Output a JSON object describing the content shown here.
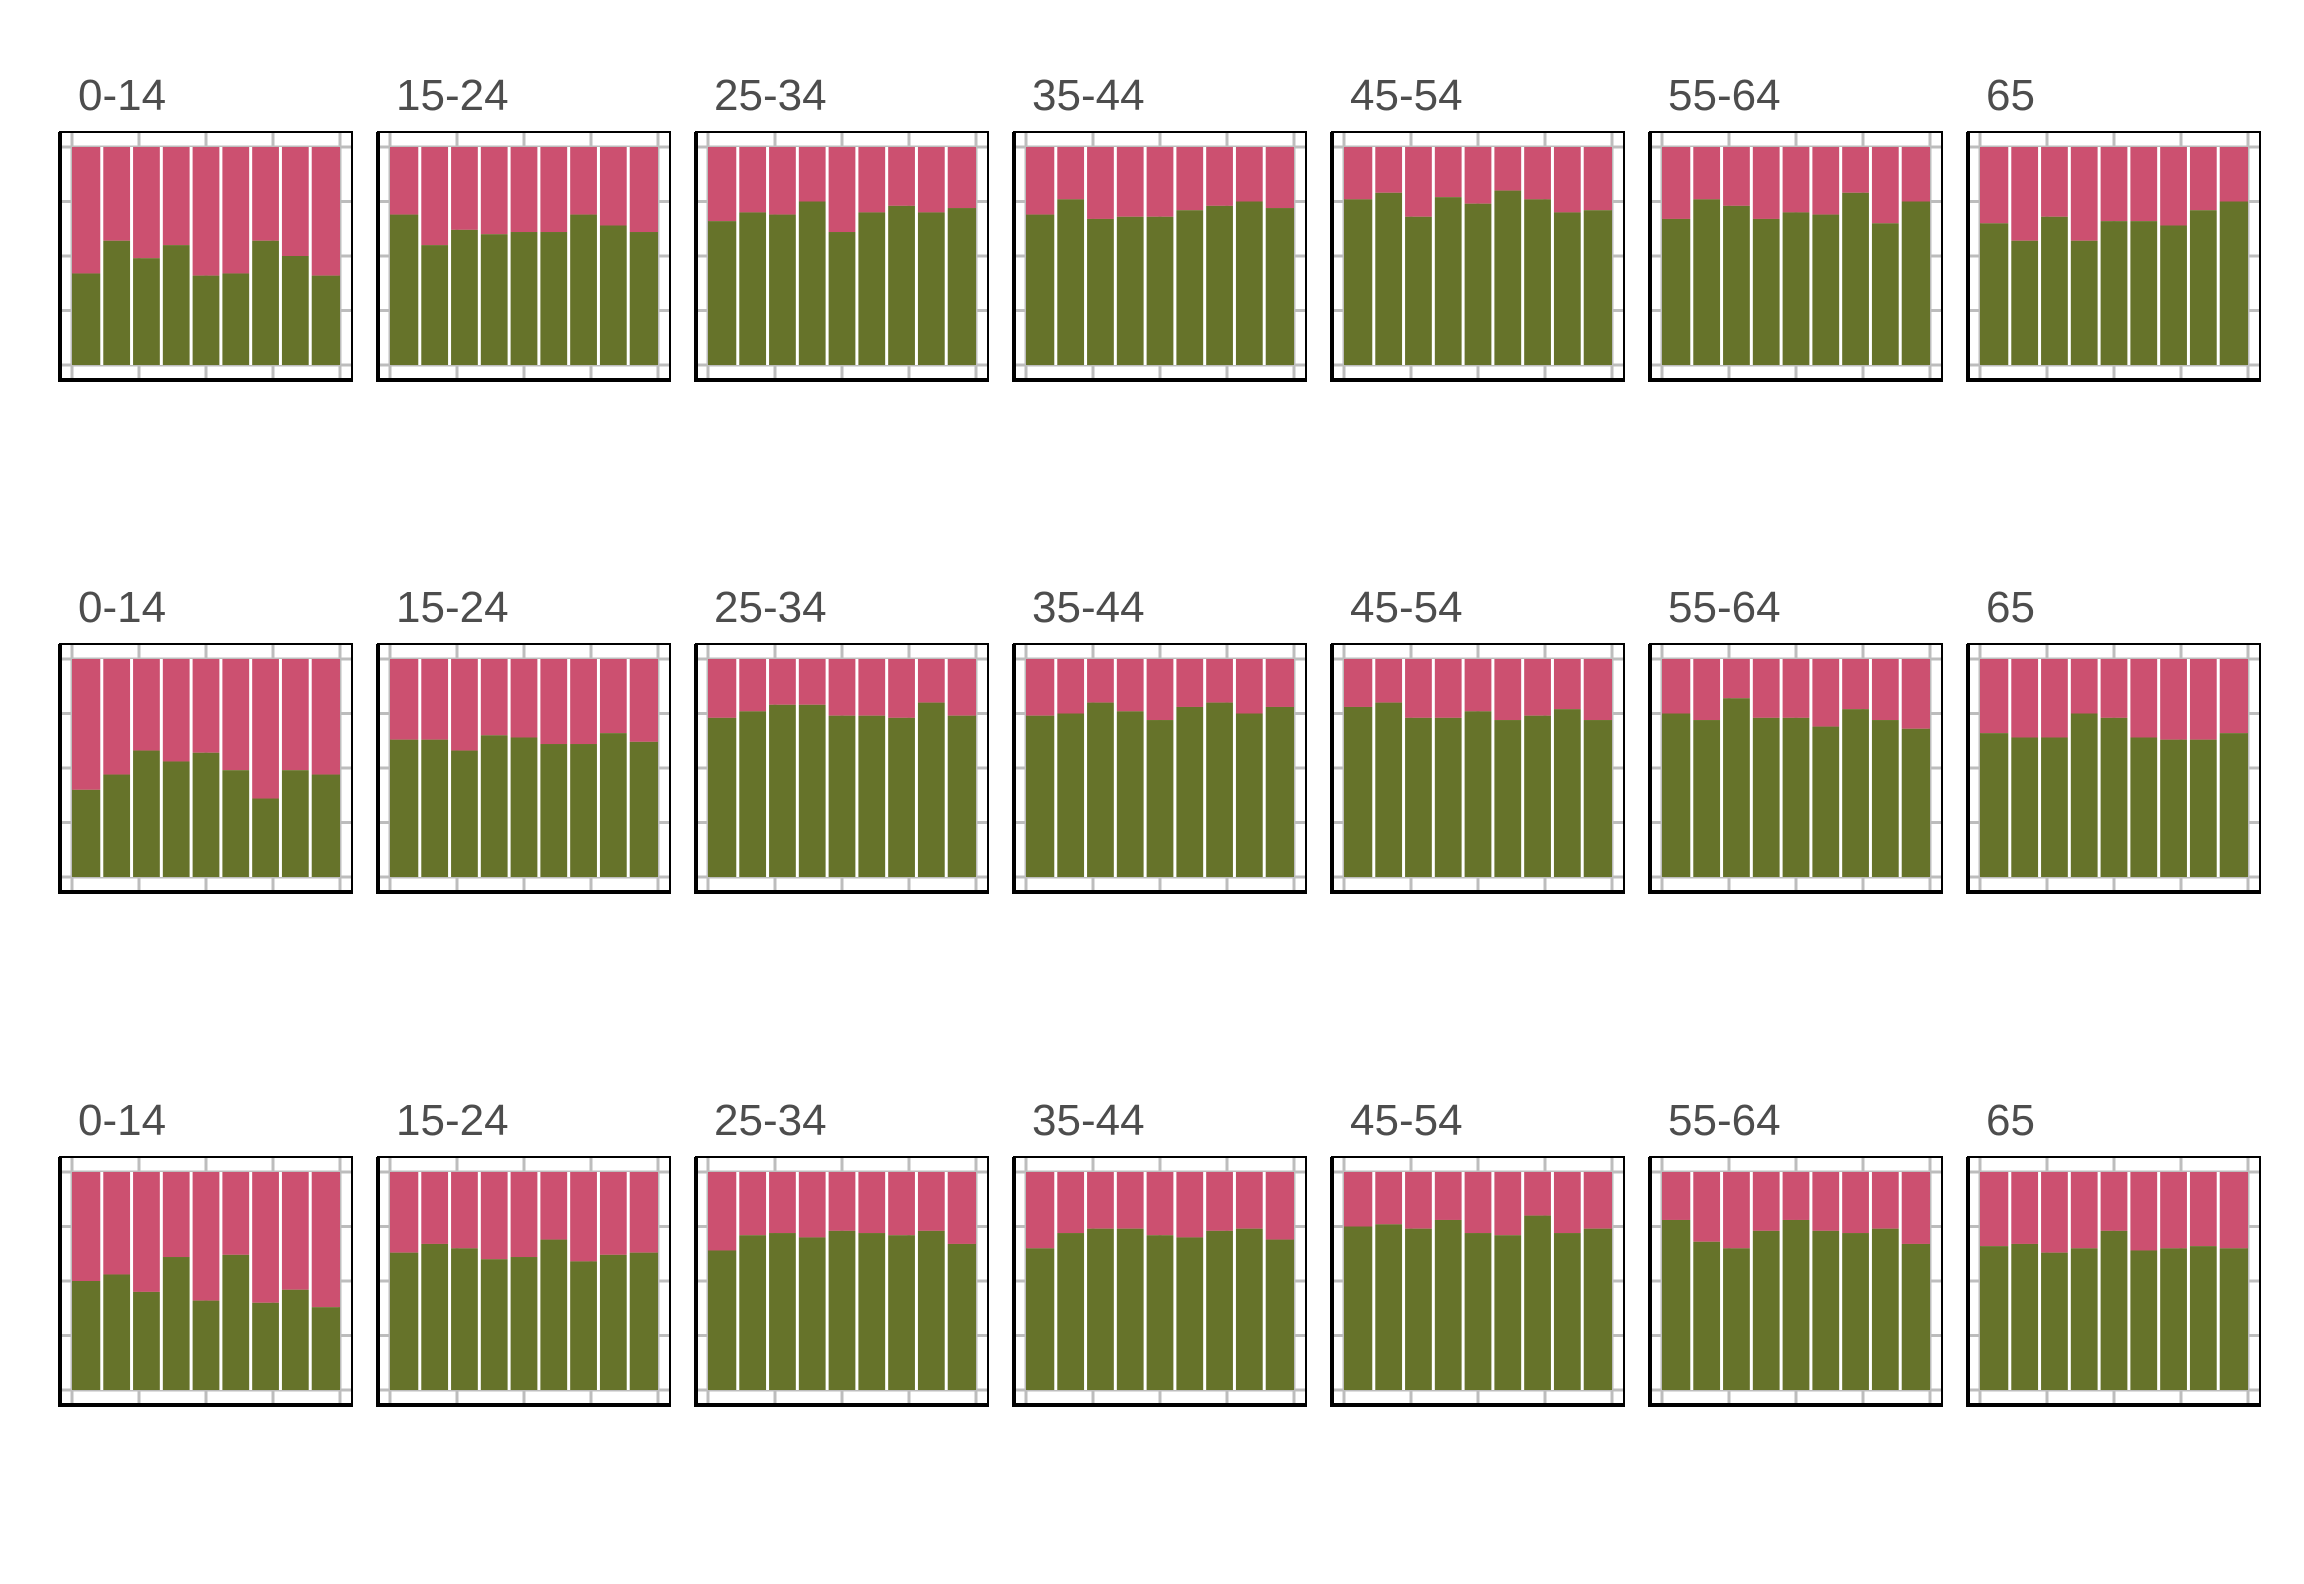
{
  "chart_data": {
    "type": "bar",
    "stacked": true,
    "normalized": true,
    "facet_rows": 3,
    "facet_cols": 7,
    "ylim": [
      0,
      1
    ],
    "grid": true,
    "legend": "none",
    "colors": {
      "bottom": "#66732a",
      "top": "#cc5070",
      "grid": "#bdbdbd",
      "frame": "#000000"
    },
    "panels": [
      {
        "row": 0,
        "label": "0-14",
        "values": [
          0.42,
          0.57,
          0.49,
          0.55,
          0.41,
          0.42,
          0.57,
          0.5,
          0.41
        ]
      },
      {
        "row": 0,
        "label": "15-24",
        "values": [
          0.69,
          0.55,
          0.62,
          0.6,
          0.61,
          0.61,
          0.69,
          0.64,
          0.61
        ]
      },
      {
        "row": 0,
        "label": "25-34",
        "values": [
          0.66,
          0.7,
          0.69,
          0.75,
          0.61,
          0.7,
          0.73,
          0.7,
          0.72
        ]
      },
      {
        "row": 0,
        "label": "35-44",
        "values": [
          0.69,
          0.76,
          0.67,
          0.68,
          0.68,
          0.71,
          0.73,
          0.75,
          0.72
        ]
      },
      {
        "row": 0,
        "label": "45-54",
        "values": [
          0.76,
          0.79,
          0.68,
          0.77,
          0.74,
          0.8,
          0.76,
          0.7,
          0.71
        ]
      },
      {
        "row": 0,
        "label": "55-64",
        "values": [
          0.67,
          0.76,
          0.73,
          0.67,
          0.7,
          0.69,
          0.79,
          0.65,
          0.75
        ]
      },
      {
        "row": 0,
        "label": "65",
        "values": [
          0.65,
          0.57,
          0.68,
          0.57,
          0.66,
          0.66,
          0.64,
          0.71,
          0.75
        ]
      },
      {
        "row": 1,
        "label": "0-14",
        "values": [
          0.4,
          0.47,
          0.58,
          0.53,
          0.57,
          0.49,
          0.36,
          0.49,
          0.47
        ]
      },
      {
        "row": 1,
        "label": "15-24",
        "values": [
          0.63,
          0.63,
          0.58,
          0.65,
          0.64,
          0.61,
          0.61,
          0.66,
          0.62
        ]
      },
      {
        "row": 1,
        "label": "25-34",
        "values": [
          0.73,
          0.76,
          0.79,
          0.79,
          0.74,
          0.74,
          0.73,
          0.8,
          0.74
        ]
      },
      {
        "row": 1,
        "label": "35-44",
        "values": [
          0.74,
          0.75,
          0.8,
          0.76,
          0.72,
          0.78,
          0.8,
          0.75,
          0.78
        ]
      },
      {
        "row": 1,
        "label": "45-54",
        "values": [
          0.78,
          0.8,
          0.73,
          0.73,
          0.76,
          0.72,
          0.74,
          0.77,
          0.72
        ]
      },
      {
        "row": 1,
        "label": "55-64",
        "values": [
          0.75,
          0.72,
          0.82,
          0.73,
          0.73,
          0.69,
          0.77,
          0.72,
          0.68
        ]
      },
      {
        "row": 1,
        "label": "65",
        "values": [
          0.66,
          0.64,
          0.64,
          0.75,
          0.73,
          0.64,
          0.63,
          0.63,
          0.66
        ]
      },
      {
        "row": 2,
        "label": "0-14",
        "values": [
          0.5,
          0.53,
          0.45,
          0.61,
          0.41,
          0.62,
          0.4,
          0.46,
          0.38
        ]
      },
      {
        "row": 2,
        "label": "15-24",
        "values": [
          0.63,
          0.67,
          0.65,
          0.6,
          0.61,
          0.69,
          0.59,
          0.62,
          0.63
        ]
      },
      {
        "row": 2,
        "label": "25-34",
        "values": [
          0.64,
          0.71,
          0.72,
          0.7,
          0.73,
          0.72,
          0.71,
          0.73,
          0.67
        ]
      },
      {
        "row": 2,
        "label": "35-44",
        "values": [
          0.65,
          0.72,
          0.74,
          0.74,
          0.71,
          0.7,
          0.73,
          0.74,
          0.69
        ]
      },
      {
        "row": 2,
        "label": "45-54",
        "values": [
          0.75,
          0.76,
          0.74,
          0.78,
          0.72,
          0.71,
          0.8,
          0.72,
          0.74
        ]
      },
      {
        "row": 2,
        "label": "55-64",
        "values": [
          0.78,
          0.68,
          0.65,
          0.73,
          0.78,
          0.73,
          0.72,
          0.74,
          0.67
        ]
      },
      {
        "row": 2,
        "label": "65",
        "values": [
          0.66,
          0.67,
          0.63,
          0.65,
          0.73,
          0.64,
          0.65,
          0.66,
          0.65
        ]
      }
    ]
  }
}
